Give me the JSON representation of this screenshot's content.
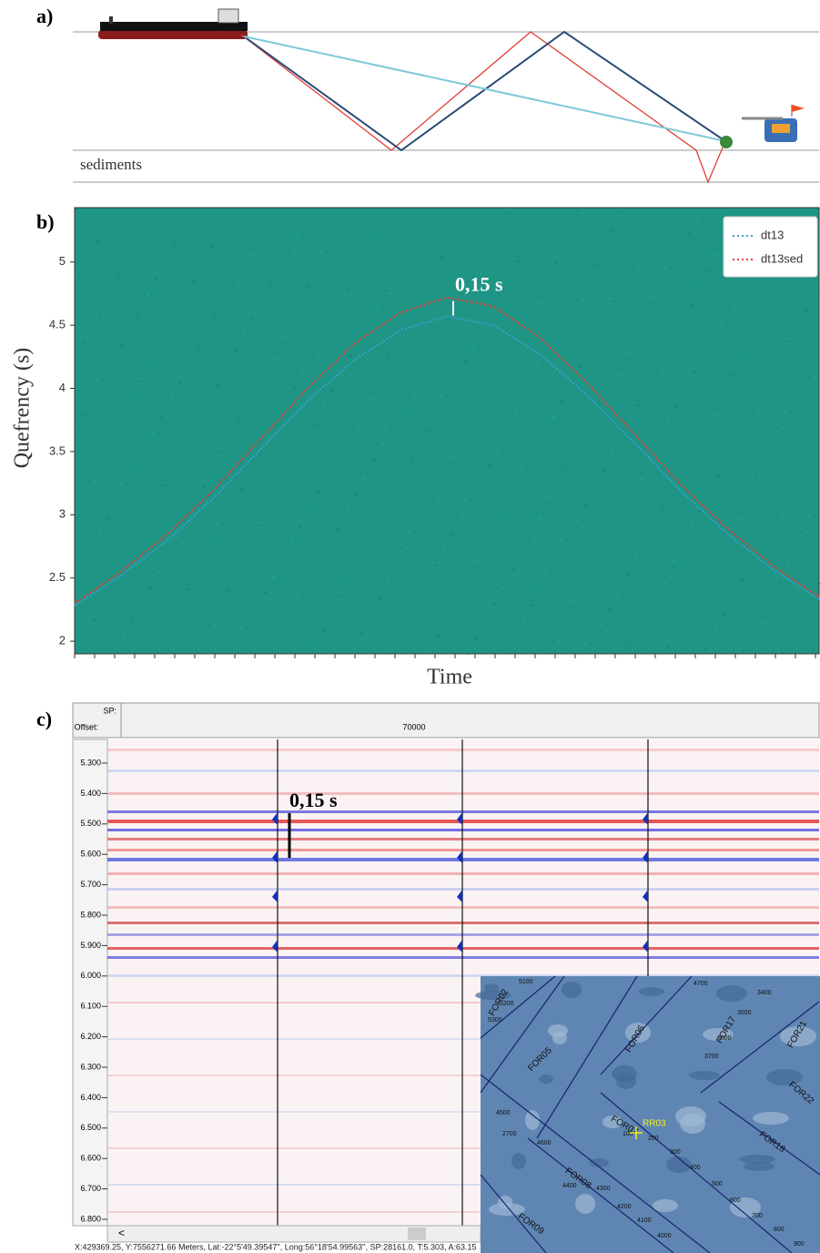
{
  "panel_a": {
    "label": "a)",
    "layer": "sediments"
  },
  "chart_data": {
    "type": "line",
    "panel_label": "b)",
    "ylabel": "Quefrency (s)",
    "xlabel": "Time",
    "categories": [
      null,
      null,
      null,
      null,
      null,
      null,
      null,
      null,
      null,
      null,
      null,
      null,
      null,
      null,
      null,
      null,
      null
    ],
    "series": [
      {
        "name": "dt13",
        "color": "#3a9fd0",
        "values": [
          2.28,
          2.52,
          2.8,
          3.14,
          3.52,
          3.9,
          4.22,
          4.46,
          4.57,
          4.5,
          4.27,
          3.95,
          3.58,
          3.2,
          2.86,
          2.57,
          2.33
        ]
      },
      {
        "name": "dt13sed",
        "color": "#e0403a",
        "values": [
          2.3,
          2.55,
          2.85,
          3.2,
          3.6,
          4.0,
          4.35,
          4.6,
          4.72,
          4.65,
          4.4,
          4.05,
          3.65,
          3.25,
          2.9,
          2.6,
          2.35
        ]
      }
    ],
    "ylim": [
      1.9,
      5.43
    ],
    "yticks": [
      2,
      2.5,
      3,
      3.5,
      4,
      4.5,
      5
    ],
    "annotation": "0,15 s",
    "legend_position": "upper right",
    "background": "#1f9585"
  },
  "panel_c": {
    "label": "c)",
    "header": {
      "sp": "SP:",
      "offset": "Offset:",
      "offset_value": "70000"
    },
    "depth_labels": [
      "5.300",
      "5.400",
      "5.500",
      "5.600",
      "5.700",
      "5.800",
      "5.900",
      "6.000",
      "6.100",
      "6.200",
      "6.300",
      "6.400",
      "6.500",
      "6.600",
      "6.700",
      "6.800"
    ],
    "annotation": "0,15 s",
    "scroll": "<",
    "status": "X:429369.25, Y:7556271.66 Meters, Lat:-22°5'49.39547'', Long:56°18'54.99563'', SP:28161.0, T:5.303, A:63.15",
    "map_labels": [
      "FOR02",
      "FOR05",
      "FOR06",
      "FOR17",
      "FOR21",
      "FOR22",
      "FOR18",
      "FOR07",
      "FOR08",
      "FOR09",
      "RR03",
      "5100",
      "5200",
      "5300",
      "4700",
      "4600",
      "4500",
      "4400",
      "4300",
      "4200",
      "4100",
      "4000",
      "100",
      "200",
      "300",
      "400",
      "500",
      "600",
      "700",
      "800",
      "900",
      "3700",
      "3600",
      "3500",
      "3400",
      "2700"
    ]
  }
}
